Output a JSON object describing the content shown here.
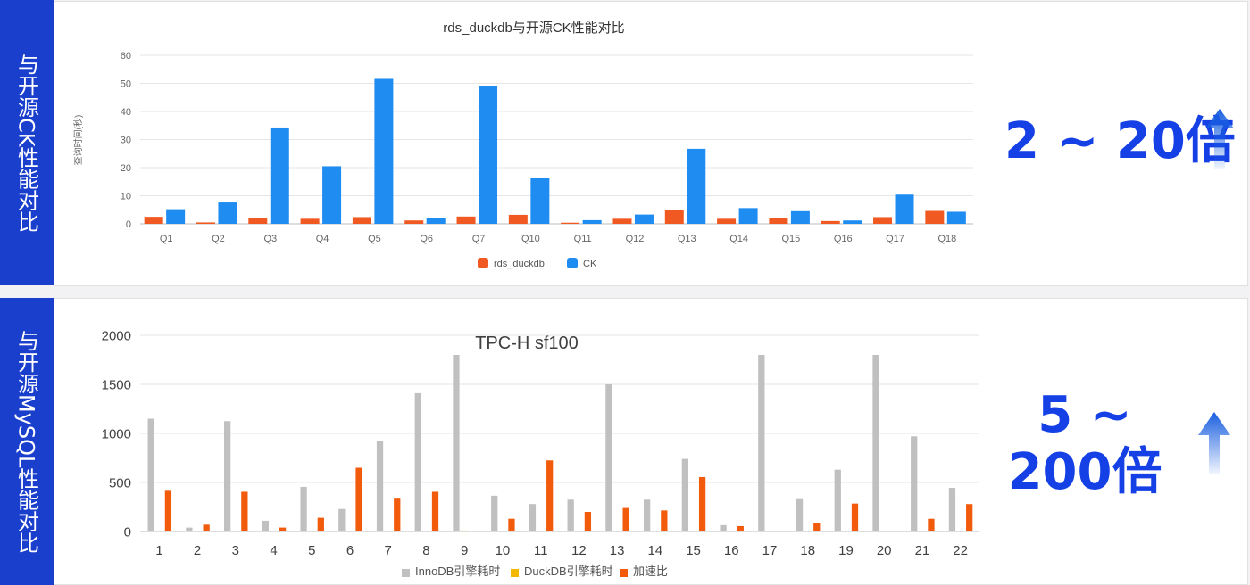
{
  "side_labels": {
    "top": "与开源CK性能对比",
    "bottom": "与开源MySQL性能对比"
  },
  "callouts": {
    "top": "2 ~ 20倍",
    "bottom": "5 ~ 200倍"
  },
  "colors": {
    "sidebar": "#1a3fcc",
    "callout": "#1440e6",
    "rds_duckdb": "#f05a22",
    "ck": "#1e8cf0",
    "innodb": "#c0c0c0",
    "duckdb": "#f2b800",
    "speedup": "#f25a0c"
  },
  "chart_data": [
    {
      "type": "bar",
      "title": "rds_duckdb与开源CK性能对比",
      "ylabel": "查询时间(秒)",
      "ylim": [
        0,
        60
      ],
      "yticks": [
        "0",
        "10",
        "20",
        "30",
        "40",
        "50",
        "60"
      ],
      "grid": true,
      "legend": "bottom",
      "categories": [
        "Q1",
        "Q2",
        "Q3",
        "Q4",
        "Q5",
        "Q6",
        "Q7",
        "Q10",
        "Q11",
        "Q12",
        "Q13",
        "Q14",
        "Q15",
        "Q16",
        "Q17",
        "Q18"
      ],
      "series": [
        {
          "name": "rds_duckdb",
          "values": [
            2.5,
            0.5,
            2.2,
            1.8,
            2.4,
            1.2,
            2.6,
            3.2,
            0.4,
            1.8,
            4.8,
            1.8,
            2.2,
            1.0,
            2.4,
            4.6
          ]
        },
        {
          "name": "CK",
          "values": [
            5.2,
            7.6,
            34.3,
            20.5,
            51.6,
            2.2,
            49.2,
            16.2,
            1.3,
            3.3,
            26.7,
            5.6,
            4.5,
            1.2,
            10.4,
            4.3
          ]
        }
      ]
    },
    {
      "type": "bar",
      "title": "TPC-H sf100",
      "ylim": [
        0,
        2000
      ],
      "yticks": [
        "0",
        "500",
        "1000",
        "1500",
        "2000"
      ],
      "grid": true,
      "legend": "bottom",
      "categories": [
        "1",
        "2",
        "3",
        "4",
        "5",
        "6",
        "7",
        "8",
        "9",
        "10",
        "11",
        "12",
        "13",
        "14",
        "15",
        "16",
        "17",
        "18",
        "19",
        "20",
        "21",
        "22"
      ],
      "series": [
        {
          "name": "InnoDB引擎耗时",
          "values": [
            1150,
            40,
            1125,
            110,
            455,
            230,
            920,
            1410,
            1800,
            365,
            280,
            325,
            1500,
            325,
            740,
            65,
            1800,
            330,
            630,
            1800,
            970,
            445
          ]
        },
        {
          "name": "DuckDB引擎耗时",
          "values": [
            3,
            1,
            3,
            2,
            3,
            1,
            3,
            4,
            10,
            3,
            1,
            2,
            5,
            2,
            2,
            2,
            3,
            4,
            3,
            2,
            5,
            2
          ]
        },
        {
          "name": "加速比",
          "values": [
            415,
            70,
            405,
            40,
            140,
            650,
            335,
            405,
            0,
            130,
            725,
            200,
            240,
            215,
            555,
            55,
            0,
            85,
            285,
            0,
            130,
            280
          ]
        }
      ]
    }
  ]
}
